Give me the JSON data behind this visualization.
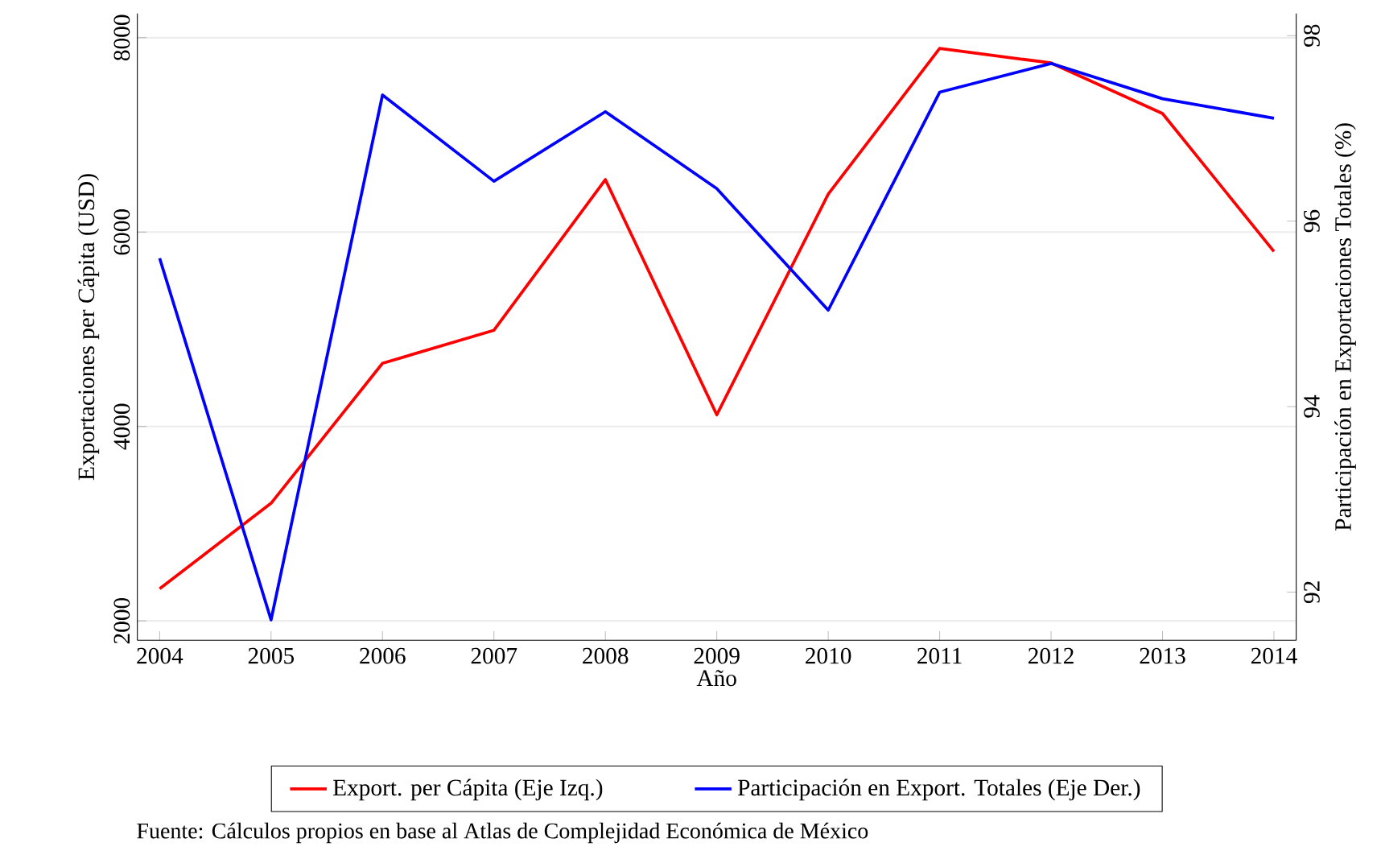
{
  "chart_data": {
    "type": "line",
    "x": [
      2004,
      2005,
      2006,
      2007,
      2008,
      2009,
      2010,
      2011,
      2012,
      2013,
      2014
    ],
    "series": [
      {
        "name": "Export. per Cápita (Eje Izq.)",
        "color": "#ff0000",
        "values": [
          2330,
          3210,
          4650,
          4990,
          6540,
          4120,
          6390,
          7890,
          7740,
          7220,
          5800
        ]
      },
      {
        "name": "Participación en Export. Totales (Eje Der.)",
        "color": "#0000ff",
        "axis": "y2",
        "values": [
          95.6,
          91.7,
          97.36,
          96.43,
          97.18,
          96.35,
          95.04,
          97.39,
          97.7,
          97.32,
          97.11
        ]
      }
    ],
    "xlabel": "Año",
    "ylabel": "Exportaciones per Cápita (USD)",
    "y2label": "Participación en Exportaciones Totales (%)",
    "xlim": [
      2003.8,
      2014.2
    ],
    "xticks": [
      2004,
      2005,
      2006,
      2007,
      2008,
      2009,
      2010,
      2011,
      2012,
      2013,
      2014
    ],
    "ylim": [
      1800,
      8250
    ],
    "yticks": [
      2000,
      4000,
      6000,
      8000
    ],
    "y2lim": [
      91.48,
      98.24
    ],
    "y2ticks": [
      92,
      94,
      96,
      98
    ],
    "grid": "y",
    "legend": "bottom",
    "marker": "none",
    "line_style": "solid",
    "annotations": [
      "Fuente: Cálculos propios en base al Atlas de Complejidad Económica de México"
    ]
  }
}
